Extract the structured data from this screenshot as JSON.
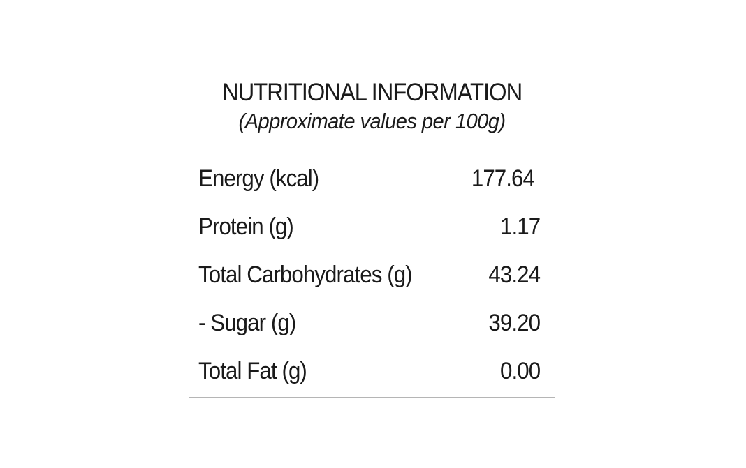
{
  "panel": {
    "title": "NUTRITIONAL INFORMATION",
    "subtitle": "(Approximate values per 100g)"
  },
  "rows": [
    {
      "label": "Energy (kcal)",
      "value": "177.64"
    },
    {
      "label": "Protein (g)",
      "value": "1.17"
    },
    {
      "label": "Total Carbohydrates (g)",
      "value": "43.24"
    },
    {
      "label": "- Sugar (g)",
      "value": "39.20"
    },
    {
      "label": "Total Fat (g)",
      "value": "0.00"
    }
  ]
}
